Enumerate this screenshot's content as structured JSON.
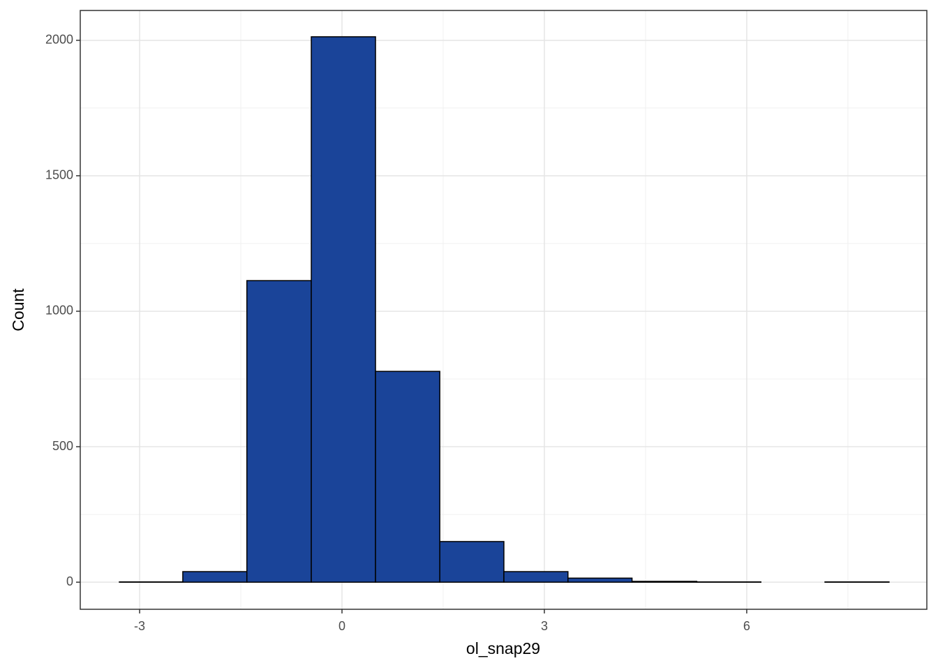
{
  "chart_data": {
    "type": "histogram",
    "x_label": "ol_snap29",
    "y_label": "Count",
    "bins": [
      -3.3,
      -2.36,
      -1.41,
      -0.455,
      0.497,
      1.45,
      2.4,
      3.35,
      4.3,
      5.26,
      6.21,
      7.16,
      8.11
    ],
    "values": [
      1,
      39,
      1113,
      2013,
      778,
      150,
      39,
      15,
      3,
      1,
      0,
      1
    ],
    "color": "#1a4499",
    "xlim": [
      -3.88,
      8.67
    ],
    "ylim": [
      -100,
      2110
    ],
    "xticks": [
      -3,
      0,
      3,
      6
    ],
    "yticks": [
      0,
      500,
      1000,
      1500,
      2000
    ],
    "x_minor_grid": [
      -1.5,
      1.5,
      4.5,
      7.5
    ],
    "y_minor_grid": [
      250,
      750,
      1250,
      1750
    ],
    "grid": true
  }
}
